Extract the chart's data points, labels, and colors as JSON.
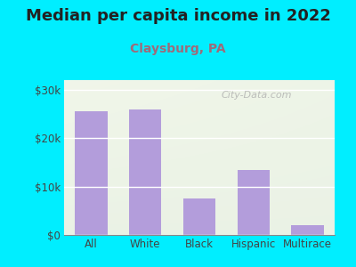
{
  "title": "Median per capita income in 2022",
  "subtitle": "Claysburg, PA",
  "categories": [
    "All",
    "White",
    "Black",
    "Hispanic",
    "Multirace"
  ],
  "values": [
    25500,
    26000,
    7500,
    13500,
    2000
  ],
  "bar_color": "#b39ddb",
  "background_outer": "#00eeff",
  "title_fontsize": 13,
  "title_color": "#222222",
  "subtitle_fontsize": 10,
  "subtitle_color": "#9e6b7a",
  "tick_label_color": "#444444",
  "yticks": [
    0,
    10000,
    20000,
    30000
  ],
  "ytick_labels": [
    "$0",
    "$10k",
    "$20k",
    "$30k"
  ],
  "ylim": [
    0,
    32000
  ],
  "watermark": "City-Data.com",
  "watermark_color": "#aaaaaa"
}
